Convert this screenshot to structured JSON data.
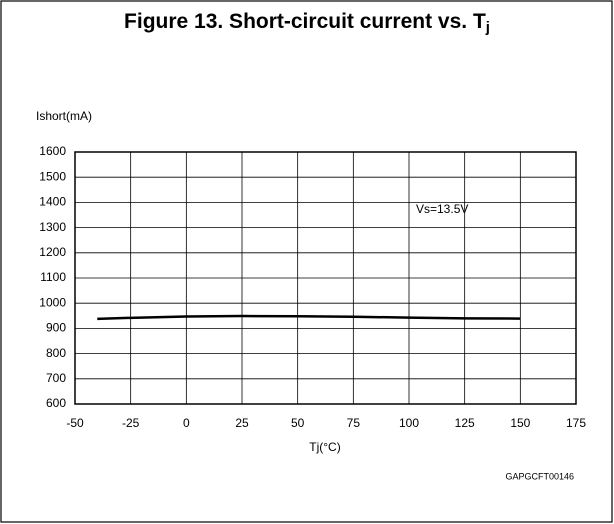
{
  "chart_data": {
    "type": "line",
    "title": "Figure 13. Short-circuit current vs. T",
    "title_subscript": "j",
    "y_label": "Ishort(mA)",
    "x_label": "Tj(°C)",
    "annotation": "Vs=13.5V",
    "figure_code": "GAPGCFT00146",
    "x": [
      -40,
      -25,
      0,
      25,
      50,
      75,
      100,
      125,
      150
    ],
    "series": [
      {
        "name": "Vs=13.5V",
        "color": "#000000",
        "values": [
          938,
          942,
          947,
          949,
          948,
          946,
          943,
          940,
          939
        ]
      }
    ],
    "xlim": [
      -50,
      175
    ],
    "xticks": [
      -50,
      -25,
      0,
      25,
      50,
      75,
      100,
      125,
      150,
      175
    ],
    "ylim": [
      600,
      1600
    ],
    "yticks": [
      600,
      700,
      800,
      900,
      1000,
      1100,
      1200,
      1300,
      1400,
      1500,
      1600
    ],
    "grid": true
  }
}
